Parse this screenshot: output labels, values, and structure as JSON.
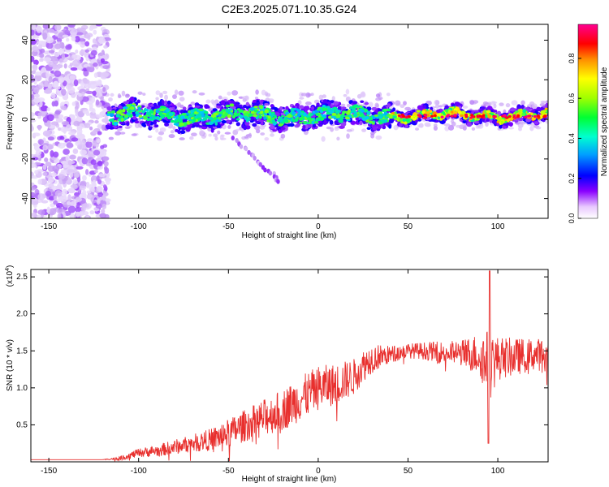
{
  "figure_title": "C2E3.2025.071.10.35.G24",
  "chart_data": [
    {
      "type": "heatmap",
      "xlabel": "Height of straight line (km)",
      "ylabel": "Frequency (Hz)",
      "xlim": [
        -160,
        128
      ],
      "ylim": [
        -50,
        48
      ],
      "x_ticks": [
        -150,
        -100,
        -50,
        0,
        50,
        100
      ],
      "y_ticks": [
        -40,
        -20,
        0,
        20,
        40
      ],
      "colorbar": {
        "label": "Normalized spectral amplitude",
        "range": [
          0,
          0.97
        ],
        "ticks": [
          0.0,
          0.2,
          0.4,
          0.6,
          0.8
        ],
        "colormap": [
          "#ffffff",
          "#c9a3f5",
          "#7a00ff",
          "#0000ff",
          "#00c8ff",
          "#00ff66",
          "#b4ff00",
          "#ffff00",
          "#ff8800",
          "#ff0000",
          "#ff00b4"
        ]
      },
      "features": {
        "noise_region_x": [
          -160,
          -117
        ],
        "main_band_x": [
          -117,
          128
        ],
        "main_band_center_hz": 2,
        "weak_branch": [
          [
            -47,
            -10
          ],
          [
            -40,
            -15
          ],
          [
            -33,
            -22
          ],
          [
            -25,
            -28
          ],
          [
            -21,
            -32
          ]
        ]
      }
    },
    {
      "type": "line",
      "xlabel": "Height of straight line (km)",
      "ylabel": "SNR (10 * v/v)",
      "y_multiplier": "(x10^4)",
      "xlim": [
        -160,
        128
      ],
      "ylim": [
        0,
        2.6
      ],
      "x_ticks": [
        -150,
        -100,
        -50,
        0,
        50,
        100
      ],
      "y_ticks": [
        0.5,
        1.0,
        1.5,
        2.0,
        2.5
      ],
      "series": [
        {
          "color": "#e8302e",
          "x": [
            -160,
            -140,
            -120,
            -110,
            -100,
            -90,
            -80,
            -70,
            -60,
            -50,
            -40,
            -30,
            -20,
            -10,
            0,
            10,
            20,
            25,
            30,
            40,
            50,
            60,
            70,
            80,
            90,
            95,
            100,
            110,
            120,
            128
          ],
          "y": [
            0.03,
            0.03,
            0.03,
            0.05,
            0.12,
            0.15,
            0.2,
            0.25,
            0.3,
            0.38,
            0.5,
            0.6,
            0.7,
            0.85,
            1.0,
            1.05,
            1.15,
            1.3,
            1.4,
            1.45,
            1.5,
            1.5,
            1.48,
            1.47,
            1.45,
            1.3,
            1.4,
            1.42,
            1.45,
            1.45
          ],
          "noise_amplitude": [
            0,
            0,
            0,
            0.03,
            0.06,
            0.08,
            0.1,
            0.12,
            0.15,
            0.2,
            0.22,
            0.25,
            0.28,
            0.3,
            0.3,
            0.28,
            0.25,
            0.22,
            0.2,
            0.12,
            0.1,
            0.12,
            0.15,
            0.18,
            0.3,
            0.5,
            0.3,
            0.25,
            0.22,
            0.22
          ]
        }
      ]
    }
  ]
}
